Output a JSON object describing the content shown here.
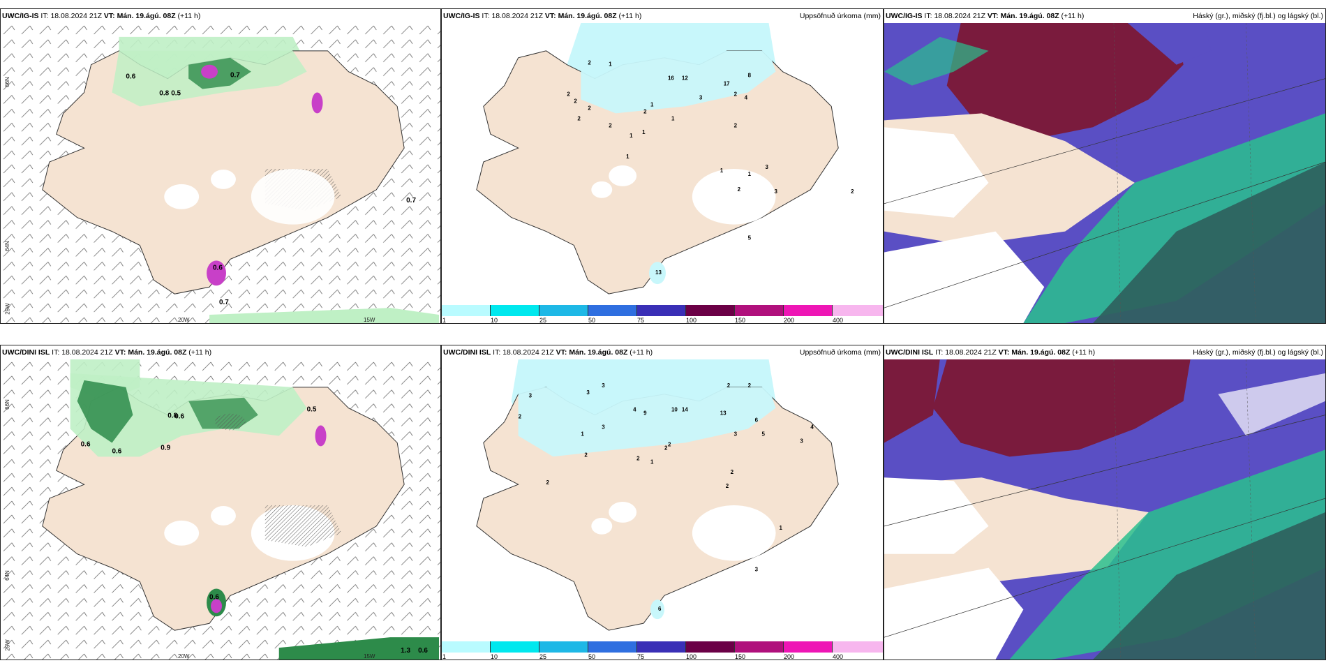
{
  "rows": [
    {
      "model": "UWC/IG-IS",
      "it_label": "IT:",
      "it_value": "18.08.2024 21Z",
      "vt_label": "VT:",
      "vt_value": "Mán. 19.ágú. 08Z",
      "lead": "(+11 h)",
      "precip_title": "Uppsöfnuð úrkoma (mm)",
      "cloud_title": "Háský (gr.), miðský (fj.bl.) og lágský (bl.)",
      "wind_values": [
        "0.6",
        "0.8",
        "0.5",
        "0.7",
        "0.7",
        "0.6",
        "0.7"
      ],
      "precip_values": [
        "2",
        "1",
        "2",
        "2",
        "2",
        "4",
        "17",
        "8",
        "3",
        "12",
        "16",
        "2",
        "1",
        "2",
        "2",
        "1",
        "1",
        "2",
        "1",
        "3",
        "2",
        "3",
        "2",
        "5",
        "13",
        "2",
        "1",
        "1",
        "1"
      ]
    },
    {
      "model": "UWC/DINI ISL",
      "it_label": "IT:",
      "it_value": "18.08.2024 21Z",
      "vt_label": "VT:",
      "vt_value": "Mán. 19.ágú. 08Z",
      "lead": "(+11 h)",
      "precip_title": "Uppsöfnuð úrkoma (mm)",
      "cloud_title": "Háský (gr.), miðský (fj.bl.) og lágský (bl.)",
      "wind_values": [
        "0.6",
        "0.8",
        "0.6",
        "0.9",
        "0.5",
        "0.6",
        "0.6",
        "1.3",
        "0.6"
      ],
      "precip_values": [
        "3",
        "2",
        "3",
        "3",
        "1",
        "2",
        "3",
        "4",
        "9",
        "13",
        "14",
        "10",
        "2",
        "2",
        "6",
        "5",
        "3",
        "2",
        "1",
        "2",
        "4",
        "3",
        "2",
        "2",
        "2",
        "1",
        "6",
        "3",
        "2"
      ]
    }
  ],
  "coords": {
    "lat66": "66N",
    "lat64": "64N",
    "lon20": "20W",
    "lon15": "15W",
    "lon25": "25W"
  },
  "colorbar": {
    "labels": [
      "1",
      "10",
      "25",
      "50",
      "75",
      "100",
      "150",
      "200",
      "400"
    ],
    "colors": [
      "#b9fbff",
      "#00e8ee",
      "#1eb8e6",
      "#2f6fe0",
      "#3a2fb6",
      "#6b0046",
      "#b0107c",
      "#ee16b5",
      "#f7b6ee"
    ]
  },
  "colors": {
    "land": "#f5e3d2",
    "precip_light": "#c8f7fb",
    "precip_green_light": "#bff0c5",
    "precip_green_dark": "#2d8b4a",
    "magenta": "#c840c8",
    "cloud_high": "#7a1b3d",
    "cloud_mid": "#5a4fc4",
    "cloud_low": "#2ac08e",
    "cloud_dark": "#2f5f5c"
  }
}
